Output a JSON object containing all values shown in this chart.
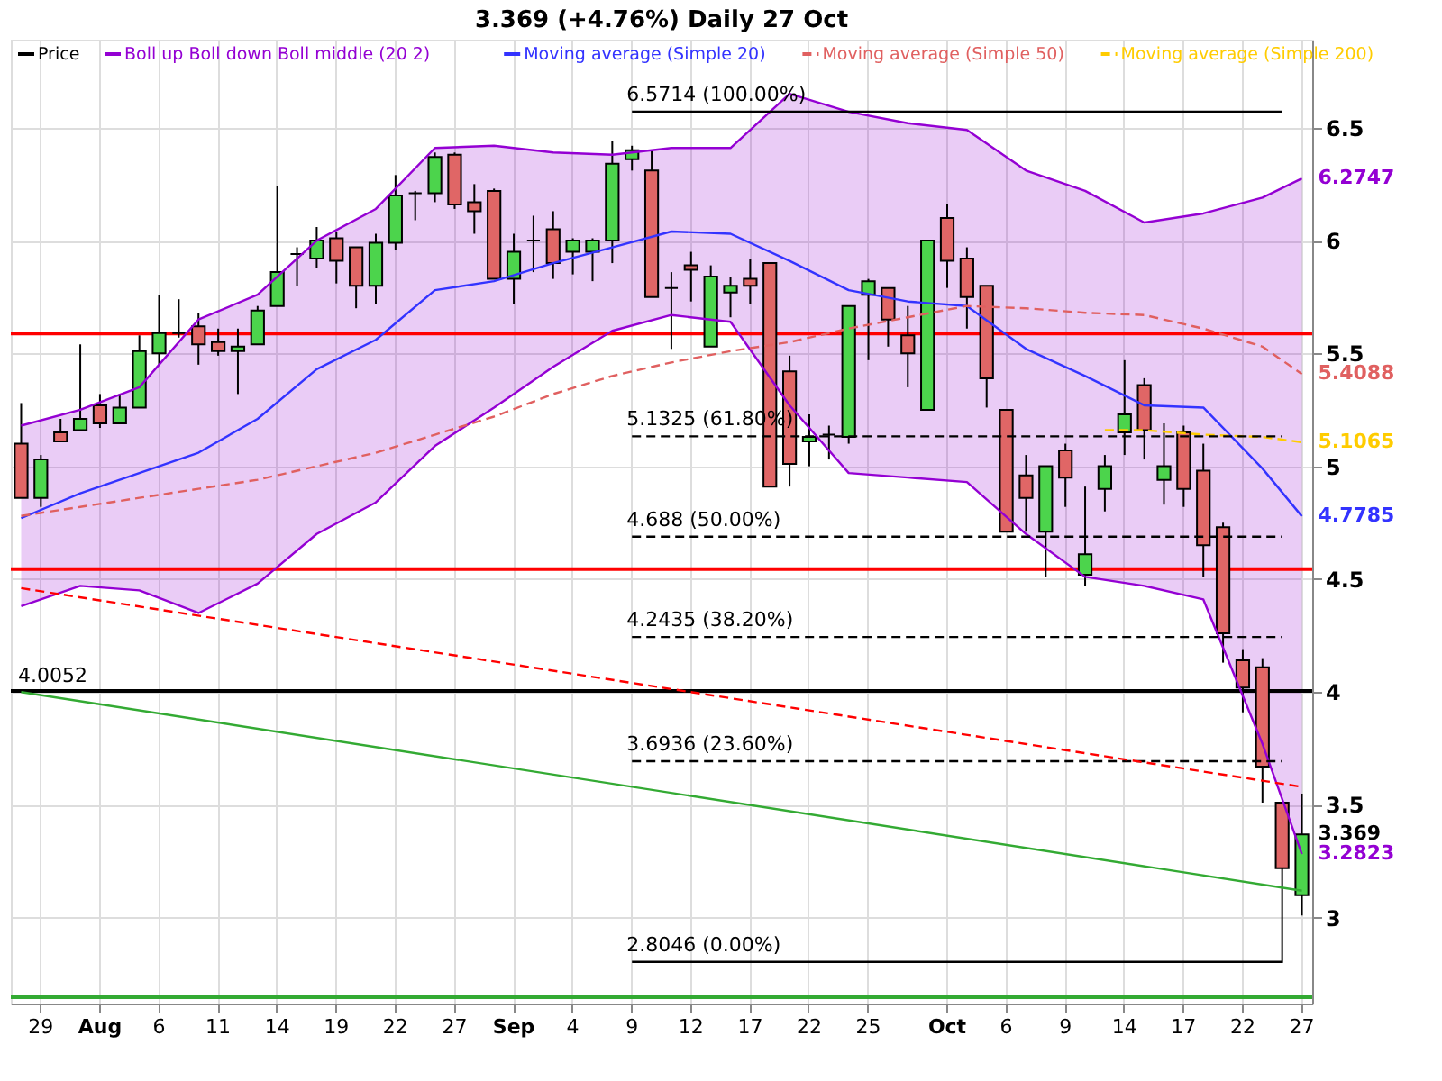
{
  "chart_data": {
    "type": "candlestick",
    "title": "3.369 (+4.76%) Daily 27 Oct",
    "categories": [
      null,
      "29",
      null,
      null,
      "Aug",
      null,
      null,
      "6",
      null,
      null,
      "11",
      null,
      null,
      "14",
      null,
      null,
      "19",
      null,
      null,
      "22",
      null,
      null,
      "27",
      null,
      null,
      "Sep",
      null,
      null,
      "4",
      null,
      null,
      "9",
      null,
      null,
      "12",
      null,
      null,
      "17",
      null,
      null,
      "22",
      null,
      null,
      "25",
      null,
      null,
      null,
      "Oct",
      null,
      null,
      "6",
      null,
      null,
      "9",
      null,
      null,
      "14",
      null,
      null,
      "17",
      null,
      null,
      "22",
      null,
      null,
      "27"
    ],
    "ylim": [
      2.62,
      6.89
    ],
    "yticks": [
      3,
      3.5,
      4,
      4.5,
      5,
      5.5,
      6,
      6.5
    ],
    "grid": true,
    "legend": "top left",
    "series": [
      {
        "name": "Price",
        "color": "#000000",
        "ohlc": [
          [
            5.1,
            5.28,
            4.86,
            4.86
          ],
          [
            4.86,
            5.05,
            4.82,
            5.03
          ],
          [
            5.15,
            5.21,
            5.11,
            5.11
          ],
          [
            5.16,
            5.54,
            5.16,
            5.21
          ],
          [
            5.27,
            5.32,
            5.17,
            5.19
          ],
          [
            5.19,
            5.32,
            5.19,
            5.26
          ],
          [
            5.26,
            5.58,
            5.26,
            5.51
          ],
          [
            5.5,
            5.76,
            5.45,
            5.59
          ],
          [
            5.59,
            5.74,
            5.57,
            5.59
          ],
          [
            5.62,
            5.68,
            5.45,
            5.54
          ],
          [
            5.55,
            5.61,
            5.49,
            5.51
          ],
          [
            5.51,
            5.61,
            5.32,
            5.53
          ],
          [
            5.54,
            5.71,
            5.54,
            5.69
          ],
          [
            5.71,
            6.24,
            5.71,
            5.86
          ],
          [
            5.94,
            5.97,
            5.8,
            5.94
          ],
          [
            5.92,
            6.06,
            5.88,
            6.0
          ],
          [
            6.01,
            6.04,
            5.81,
            5.91
          ],
          [
            5.97,
            5.97,
            5.7,
            5.8
          ],
          [
            5.8,
            6.03,
            5.72,
            5.99
          ],
          [
            5.99,
            6.29,
            5.96,
            6.2
          ],
          [
            6.21,
            6.22,
            6.09,
            6.21
          ],
          [
            6.21,
            6.39,
            6.17,
            6.37
          ],
          [
            6.38,
            6.39,
            6.14,
            6.16
          ],
          [
            6.17,
            6.25,
            6.03,
            6.13
          ],
          [
            6.22,
            6.23,
            5.83,
            5.83
          ],
          [
            5.83,
            6.03,
            5.72,
            5.95
          ],
          [
            6.0,
            6.11,
            5.86,
            6.0
          ],
          [
            6.05,
            6.13,
            5.83,
            5.9
          ],
          [
            5.95,
            6.01,
            5.85,
            6.0
          ],
          [
            5.95,
            6.01,
            5.82,
            6.0
          ],
          [
            6.0,
            6.44,
            5.9,
            6.34
          ],
          [
            6.36,
            6.42,
            6.31,
            6.4
          ],
          [
            6.31,
            6.4,
            5.75,
            5.75
          ],
          [
            5.79,
            5.86,
            5.52,
            5.79
          ],
          [
            5.89,
            5.95,
            5.73,
            5.87
          ],
          [
            5.53,
            5.89,
            5.53,
            5.84
          ],
          [
            5.77,
            5.84,
            5.66,
            5.8
          ],
          [
            5.83,
            5.92,
            5.72,
            5.8
          ],
          [
            5.9,
            5.9,
            4.91,
            4.91
          ],
          [
            5.42,
            5.49,
            4.91,
            5.01
          ],
          [
            5.11,
            5.23,
            5.0,
            5.13
          ],
          [
            5.14,
            5.18,
            5.03,
            5.14
          ],
          [
            5.13,
            5.71,
            5.1,
            5.71
          ],
          [
            5.76,
            5.83,
            5.47,
            5.82
          ],
          [
            5.79,
            5.79,
            5.53,
            5.65
          ],
          [
            5.58,
            5.71,
            5.35,
            5.5
          ],
          [
            5.25,
            6.0,
            5.25,
            6.0
          ],
          [
            6.1,
            6.16,
            5.79,
            5.91
          ],
          [
            5.92,
            5.97,
            5.61,
            5.75
          ],
          [
            5.8,
            5.8,
            5.26,
            5.39
          ],
          [
            5.25,
            5.25,
            4.71,
            4.71
          ],
          [
            4.96,
            5.05,
            4.71,
            4.86
          ],
          [
            4.71,
            5.0,
            4.51,
            5.0
          ],
          [
            5.07,
            5.1,
            4.82,
            4.95
          ],
          [
            4.52,
            4.91,
            4.47,
            4.61
          ],
          [
            4.9,
            5.05,
            4.8,
            5.0
          ],
          [
            5.15,
            5.47,
            5.05,
            5.23
          ],
          [
            5.36,
            5.39,
            5.03,
            5.16
          ],
          [
            4.94,
            5.19,
            4.83,
            5.0
          ],
          [
            5.15,
            5.18,
            4.82,
            4.9
          ],
          [
            4.98,
            5.1,
            4.51,
            4.65
          ],
          [
            4.73,
            4.75,
            4.13,
            4.26
          ],
          [
            4.14,
            4.19,
            3.91,
            4.02
          ],
          [
            4.11,
            4.15,
            3.51,
            3.67
          ],
          [
            3.51,
            3.51,
            2.8,
            3.22
          ],
          [
            3.1,
            3.55,
            3.01,
            3.369
          ]
        ],
        "colors": [
          "#e06666",
          "#4cd44c",
          "#e06666",
          "#4cd44c",
          "#e06666",
          "#4cd44c",
          "#4cd44c",
          "#4cd44c",
          "#000000",
          "#e06666",
          "#e06666",
          "#4cd44c",
          "#4cd44c",
          "#4cd44c",
          "#000000",
          "#4cd44c",
          "#e06666",
          "#e06666",
          "#4cd44c",
          "#4cd44c",
          "#000000",
          "#4cd44c",
          "#e06666",
          "#e06666",
          "#e06666",
          "#4cd44c",
          "#000000",
          "#e06666",
          "#4cd44c",
          "#4cd44c",
          "#4cd44c",
          "#4cd44c",
          "#e06666",
          "#000000",
          "#e06666",
          "#4cd44c",
          "#4cd44c",
          "#e06666",
          "#e06666",
          "#e06666",
          "#4cd44c",
          "#000000",
          "#4cd44c",
          "#4cd44c",
          "#e06666",
          "#e06666",
          "#4cd44c",
          "#e06666",
          "#e06666",
          "#e06666",
          "#e06666",
          "#e06666",
          "#4cd44c",
          "#e06666",
          "#4cd44c",
          "#4cd44c",
          "#4cd44c",
          "#e06666",
          "#4cd44c",
          "#e06666",
          "#e06666",
          "#e06666",
          "#e06666",
          "#e06666",
          "#e06666",
          "#4cd44c"
        ],
        "value_labels": [
          null,
          null,
          null,
          null,
          null,
          null,
          null,
          null,
          null,
          null,
          null,
          null,
          null,
          null,
          null,
          null,
          null,
          null,
          null,
          null,
          null,
          null,
          null,
          null,
          null,
          null,
          null,
          null,
          null,
          null,
          null,
          null,
          null,
          null,
          null,
          null,
          null,
          null,
          null,
          null,
          null,
          null,
          null,
          null,
          null,
          null,
          null,
          null,
          null,
          null,
          null,
          null,
          null,
          null,
          null,
          null,
          null,
          null,
          null,
          null,
          null,
          null,
          null,
          null,
          null,
          "3.369"
        ]
      },
      {
        "name": "Boll up Boll down Boll middle (20 2)",
        "type": "line",
        "color": "#9400d3",
        "values": [
          5.18,
          null,
          null,
          5.25,
          null,
          null,
          5.35,
          null,
          null,
          5.65,
          null,
          null,
          5.76,
          null,
          null,
          6.0,
          null,
          null,
          6.14,
          null,
          null,
          6.41,
          null,
          null,
          6.42,
          null,
          null,
          6.39,
          null,
          null,
          6.38,
          null,
          null,
          6.41,
          null,
          null,
          6.41,
          null,
          null,
          6.65,
          null,
          null,
          6.57,
          null,
          null,
          6.52,
          null,
          null,
          6.49,
          null,
          null,
          6.31,
          null,
          null,
          6.22,
          null,
          null,
          6.08,
          null,
          null,
          6.12,
          null,
          null,
          6.19,
          null,
          6.2747
        ],
        "lower": [
          4.38,
          null,
          null,
          4.47,
          null,
          null,
          4.45,
          null,
          null,
          4.35,
          null,
          null,
          4.48,
          null,
          null,
          4.7,
          null,
          null,
          4.84,
          null,
          null,
          5.09,
          null,
          null,
          5.26,
          null,
          null,
          5.44,
          null,
          null,
          5.6,
          null,
          null,
          5.67,
          null,
          null,
          5.64,
          null,
          null,
          5.27,
          null,
          null,
          4.97,
          null,
          null,
          4.95,
          null,
          null,
          4.93,
          null,
          null,
          4.7,
          null,
          null,
          4.51,
          null,
          null,
          4.47,
          null,
          null,
          4.41,
          null,
          null,
          3.77,
          null,
          3.2823
        ],
        "upper": [
          5.18,
          null,
          null,
          5.25,
          null,
          null,
          5.35,
          null,
          null,
          5.65,
          null,
          null,
          5.76,
          null,
          null,
          6.0,
          null,
          null,
          6.14,
          null,
          null,
          6.41,
          null,
          null,
          6.42,
          null,
          null,
          6.39,
          null,
          null,
          6.38,
          null,
          null,
          6.41,
          null,
          null,
          6.41,
          null,
          null,
          6.65,
          null,
          null,
          6.57,
          null,
          null,
          6.52,
          null,
          null,
          6.49,
          null,
          null,
          6.31,
          null,
          null,
          6.22,
          null,
          null,
          6.08,
          null,
          null,
          6.12,
          null,
          null,
          6.19,
          null,
          6.2747
        ],
        "value_labels": [
          null,
          null,
          null,
          null,
          null,
          null,
          null,
          null,
          null,
          null,
          null,
          null,
          null,
          null,
          null,
          null,
          null,
          null,
          null,
          null,
          null,
          null,
          null,
          null,
          null,
          null,
          null,
          null,
          null,
          null,
          null,
          null,
          null,
          null,
          null,
          null,
          null,
          null,
          null,
          null,
          null,
          null,
          null,
          null,
          null,
          null,
          null,
          null,
          null,
          null,
          null,
          null,
          null,
          null,
          null,
          null,
          null,
          null,
          null,
          null,
          null,
          null,
          null,
          null,
          null,
          "6.2747"
        ]
      },
      {
        "type": "line",
        "color": "#9400d3",
        "values": [
          4.38,
          null,
          null,
          4.47,
          null,
          null,
          4.45,
          null,
          null,
          4.35,
          null,
          null,
          4.48,
          null,
          null,
          4.7,
          null,
          null,
          4.84,
          null,
          null,
          5.09,
          null,
          null,
          5.26,
          null,
          null,
          5.44,
          null,
          null,
          5.6,
          null,
          null,
          5.67,
          null,
          null,
          5.64,
          null,
          null,
          5.27,
          null,
          null,
          4.97,
          null,
          null,
          4.95,
          null,
          null,
          4.93,
          null,
          null,
          4.7,
          null,
          null,
          4.51,
          null,
          null,
          4.47,
          null,
          null,
          4.41,
          null,
          null,
          3.77,
          null,
          3.2823
        ],
        "value_labels": [
          null,
          null,
          null,
          null,
          null,
          null,
          null,
          null,
          null,
          null,
          null,
          null,
          null,
          null,
          null,
          null,
          null,
          null,
          null,
          null,
          null,
          null,
          null,
          null,
          null,
          null,
          null,
          null,
          null,
          null,
          null,
          null,
          null,
          null,
          null,
          null,
          null,
          null,
          null,
          null,
          null,
          null,
          null,
          null,
          null,
          null,
          null,
          null,
          null,
          null,
          null,
          null,
          null,
          null,
          null,
          null,
          null,
          null,
          null,
          null,
          null,
          null,
          null,
          null,
          null,
          "3.2823"
        ]
      },
      {
        "name": "Moving average (Simple 20)",
        "type": "line",
        "color": "#3333ff",
        "values": [
          4.77,
          null,
          null,
          4.88,
          null,
          null,
          4.97,
          null,
          null,
          5.06,
          null,
          null,
          5.21,
          null,
          null,
          5.43,
          null,
          null,
          5.56,
          null,
          null,
          5.78,
          null,
          null,
          5.82,
          null,
          null,
          5.9,
          null,
          null,
          5.97,
          null,
          null,
          6.04,
          null,
          null,
          6.03,
          null,
          null,
          5.91,
          null,
          null,
          5.78,
          null,
          null,
          5.73,
          null,
          null,
          5.71,
          null,
          null,
          5.52,
          null,
          null,
          5.4,
          null,
          null,
          5.27,
          null,
          null,
          5.26,
          null,
          null,
          4.99,
          null,
          4.7785
        ],
        "value_labels": [
          null,
          null,
          null,
          null,
          null,
          null,
          null,
          null,
          null,
          null,
          null,
          null,
          null,
          null,
          null,
          null,
          null,
          null,
          null,
          null,
          null,
          null,
          null,
          null,
          null,
          null,
          null,
          null,
          null,
          null,
          null,
          null,
          null,
          null,
          null,
          null,
          null,
          null,
          null,
          null,
          null,
          null,
          null,
          null,
          null,
          null,
          null,
          null,
          null,
          null,
          null,
          null,
          null,
          null,
          null,
          null,
          null,
          null,
          null,
          null,
          null,
          null,
          null,
          null,
          null,
          "4.7785"
        ]
      },
      {
        "name": "Moving average (Simple 50)",
        "type": "line",
        "color": "#e06060",
        "line_style": "dashed",
        "values": [
          4.78,
          null,
          null,
          4.82,
          null,
          null,
          4.86,
          null,
          null,
          4.9,
          null,
          null,
          4.94,
          null,
          null,
          5.0,
          null,
          null,
          5.06,
          null,
          null,
          5.14,
          null,
          null,
          5.22,
          null,
          null,
          5.32,
          null,
          null,
          5.4,
          null,
          null,
          5.46,
          null,
          null,
          5.51,
          null,
          null,
          5.55,
          null,
          null,
          5.61,
          null,
          null,
          5.66,
          null,
          null,
          5.71,
          null,
          null,
          5.7,
          null,
          null,
          5.68,
          null,
          null,
          5.67,
          null,
          null,
          5.61,
          null,
          null,
          5.53,
          null,
          5.4088
        ],
        "value_labels": [
          null,
          null,
          null,
          null,
          null,
          null,
          null,
          null,
          null,
          null,
          null,
          null,
          null,
          null,
          null,
          null,
          null,
          null,
          null,
          null,
          null,
          null,
          null,
          null,
          null,
          null,
          null,
          null,
          null,
          null,
          null,
          null,
          null,
          null,
          null,
          null,
          null,
          null,
          null,
          null,
          null,
          null,
          null,
          null,
          null,
          null,
          null,
          null,
          null,
          null,
          null,
          null,
          null,
          null,
          null,
          null,
          null,
          null,
          null,
          null,
          null,
          null,
          null,
          null,
          null,
          "5.4088"
        ]
      },
      {
        "name": "Moving average (Simple 200)",
        "type": "line",
        "color": "#ffcc00",
        "line_style": "dashed",
        "values": [
          null,
          null,
          null,
          null,
          null,
          null,
          null,
          null,
          null,
          null,
          null,
          null,
          null,
          null,
          null,
          null,
          null,
          null,
          null,
          null,
          null,
          null,
          null,
          null,
          null,
          null,
          null,
          null,
          null,
          null,
          null,
          null,
          null,
          null,
          null,
          null,
          null,
          null,
          null,
          null,
          null,
          null,
          null,
          null,
          null,
          null,
          null,
          null,
          null,
          null,
          null,
          null,
          null,
          null,
          null,
          5.16,
          null,
          5.16,
          null,
          null,
          5.14,
          null,
          null,
          5.13,
          null,
          5.1065
        ],
        "value_labels": [
          null,
          null,
          null,
          null,
          null,
          null,
          null,
          null,
          null,
          null,
          null,
          null,
          null,
          null,
          null,
          null,
          null,
          null,
          null,
          null,
          null,
          null,
          null,
          null,
          null,
          null,
          null,
          null,
          null,
          null,
          null,
          null,
          null,
          null,
          null,
          null,
          null,
          null,
          null,
          null,
          null,
          null,
          null,
          null,
          null,
          null,
          null,
          null,
          null,
          null,
          null,
          null,
          null,
          null,
          null,
          null,
          null,
          null,
          null,
          null,
          null,
          null,
          null,
          null,
          null,
          "5.1065"
        ]
      },
      {
        "name": "6.5714 (100.00%)",
        "type": "line",
        "color": "#000000",
        "line_style": "solid",
        "values": [
          null,
          null,
          null,
          null,
          null,
          null,
          null,
          null,
          null,
          null,
          null,
          null,
          null,
          null,
          null,
          null,
          null,
          null,
          null,
          null,
          null,
          null,
          null,
          null,
          null,
          null,
          null,
          null,
          null,
          null,
          null,
          6.5714,
          null,
          null,
          null,
          null,
          null,
          null,
          null,
          null,
          null,
          null,
          null,
          null,
          null,
          null,
          null,
          null,
          null,
          null,
          null,
          null,
          null,
          null,
          null,
          null,
          null,
          null,
          null,
          null,
          null,
          null,
          null,
          null,
          6.5714,
          null
        ]
      },
      {
        "name": "5.1325 (61.80%)",
        "type": "line",
        "color": "#000000",
        "line_style": "dashed",
        "values": [
          null,
          null,
          null,
          null,
          null,
          null,
          null,
          null,
          null,
          null,
          null,
          null,
          null,
          null,
          null,
          null,
          null,
          null,
          null,
          null,
          null,
          null,
          null,
          null,
          null,
          null,
          null,
          null,
          null,
          null,
          null,
          5.1325,
          null,
          null,
          null,
          null,
          null,
          null,
          null,
          null,
          null,
          null,
          null,
          null,
          null,
          null,
          null,
          null,
          null,
          null,
          null,
          null,
          null,
          null,
          null,
          null,
          null,
          null,
          null,
          null,
          null,
          null,
          null,
          null,
          5.1325,
          null
        ]
      },
      {
        "name": "4.688 (50.00%)",
        "type": "line",
        "color": "#000000",
        "line_style": "dashed",
        "values": [
          null,
          null,
          null,
          null,
          null,
          null,
          null,
          null,
          null,
          null,
          null,
          null,
          null,
          null,
          null,
          null,
          null,
          null,
          null,
          null,
          null,
          null,
          null,
          null,
          null,
          null,
          null,
          null,
          null,
          null,
          null,
          4.688,
          null,
          null,
          null,
          null,
          null,
          null,
          null,
          null,
          null,
          null,
          null,
          null,
          null,
          null,
          null,
          null,
          null,
          null,
          null,
          null,
          null,
          null,
          null,
          null,
          null,
          null,
          null,
          null,
          null,
          null,
          null,
          null,
          4.688,
          null
        ]
      },
      {
        "name": "4.2435 (38.20%)",
        "type": "line",
        "color": "#000000",
        "line_style": "dashed",
        "values": [
          null,
          null,
          null,
          null,
          null,
          null,
          null,
          null,
          null,
          null,
          null,
          null,
          null,
          null,
          null,
          null,
          null,
          null,
          null,
          null,
          null,
          null,
          null,
          null,
          null,
          null,
          null,
          null,
          null,
          null,
          null,
          4.2435,
          null,
          null,
          null,
          null,
          null,
          null,
          null,
          null,
          null,
          null,
          null,
          null,
          null,
          null,
          null,
          null,
          null,
          null,
          null,
          null,
          null,
          null,
          null,
          null,
          null,
          null,
          null,
          null,
          null,
          null,
          null,
          null,
          4.2435,
          null
        ]
      },
      {
        "name": "3.6936 (23.60%)",
        "type": "line",
        "color": "#000000",
        "line_style": "dashed",
        "values": [
          null,
          null,
          null,
          null,
          null,
          null,
          null,
          null,
          null,
          null,
          null,
          null,
          null,
          null,
          null,
          null,
          null,
          null,
          null,
          null,
          null,
          null,
          null,
          null,
          null,
          null,
          null,
          null,
          null,
          null,
          null,
          3.6936,
          null,
          null,
          null,
          null,
          null,
          null,
          null,
          null,
          null,
          null,
          null,
          null,
          null,
          null,
          null,
          null,
          null,
          null,
          null,
          null,
          null,
          null,
          null,
          null,
          null,
          null,
          null,
          null,
          null,
          null,
          null,
          null,
          3.6936,
          null
        ]
      },
      {
        "name": "2.8046 (0.00%)",
        "type": "line",
        "color": "#000000",
        "line_style": "solid",
        "values": [
          null,
          null,
          null,
          null,
          null,
          null,
          null,
          null,
          null,
          null,
          null,
          null,
          null,
          null,
          null,
          null,
          null,
          null,
          null,
          null,
          null,
          null,
          null,
          null,
          null,
          null,
          null,
          null,
          null,
          null,
          null,
          2.8046,
          null,
          null,
          null,
          null,
          null,
          null,
          null,
          null,
          null,
          null,
          null,
          null,
          null,
          null,
          null,
          null,
          null,
          null,
          null,
          null,
          null,
          null,
          null,
          null,
          null,
          null,
          null,
          null,
          null,
          null,
          null,
          null,
          2.8046,
          null
        ]
      },
      {
        "type": "line",
        "color": "#33aa33",
        "line_style": "solid",
        "values": [
          4.0,
          null,
          null,
          null,
          null,
          null,
          null,
          null,
          null,
          null,
          null,
          null,
          null,
          null,
          null,
          null,
          null,
          null,
          null,
          null,
          null,
          null,
          null,
          null,
          null,
          null,
          null,
          null,
          null,
          null,
          null,
          null,
          null,
          null,
          null,
          null,
          null,
          null,
          null,
          null,
          null,
          null,
          null,
          null,
          null,
          null,
          null,
          null,
          null,
          null,
          null,
          null,
          null,
          null,
          null,
          null,
          null,
          null,
          null,
          null,
          null,
          null,
          null,
          null,
          null,
          3.12
        ]
      },
      {
        "type": "line",
        "color": "#ff0000",
        "line_style": "dashed",
        "values": [
          4.46,
          null,
          null,
          null,
          null,
          null,
          null,
          null,
          null,
          null,
          null,
          null,
          null,
          null,
          null,
          null,
          null,
          null,
          null,
          null,
          null,
          null,
          null,
          null,
          null,
          null,
          null,
          null,
          null,
          null,
          null,
          null,
          null,
          null,
          null,
          null,
          null,
          null,
          null,
          null,
          null,
          null,
          null,
          null,
          null,
          null,
          null,
          null,
          null,
          null,
          null,
          null,
          null,
          null,
          null,
          null,
          null,
          null,
          null,
          null,
          null,
          null,
          null,
          null,
          null,
          3.58
        ]
      }
    ],
    "ref_lines": [
      {
        "axis": "y",
        "value": 5.588,
        "color": "#ff0000"
      },
      {
        "axis": "y",
        "value": 4.544,
        "color": "#ff0000"
      },
      {
        "axis": "y",
        "value": 4.0052,
        "label": "4.0052",
        "color": "#000000"
      },
      {
        "axis": "y",
        "value": 2.648,
        "color": "#33aa33"
      }
    ]
  }
}
